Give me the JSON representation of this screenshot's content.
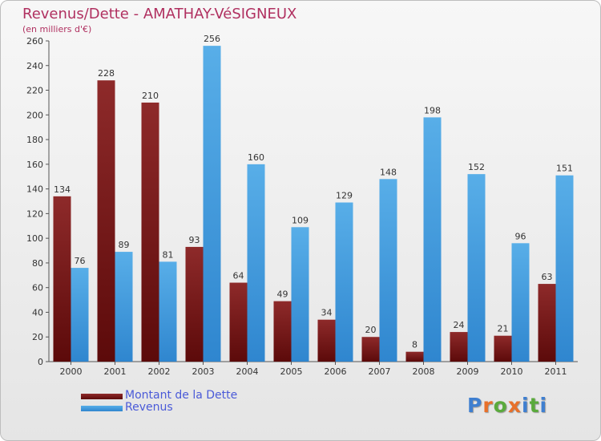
{
  "header": {
    "title": "Revenus/Dette - AMATHAY-VéSIGNEUX",
    "subtitle": "(en milliers d'€)"
  },
  "legend": {
    "items": [
      {
        "label": "Montant de la Dette",
        "color": "#7a1a1a"
      },
      {
        "label": "Revenus",
        "color": "#3d95dd"
      }
    ]
  },
  "logo": {
    "text": "Proxiti",
    "letter_colors": [
      "#3f7fd0",
      "#e8702a",
      "#5aaa3c",
      "#e8702a",
      "#3f7fd0",
      "#5aaa3c",
      "#3f7fd0"
    ]
  },
  "colors": {
    "debt": "#7a1a1a",
    "revenue": "#3d95dd",
    "title": "#b03060"
  },
  "chart_data": {
    "type": "bar",
    "title": "Revenus/Dette - AMATHAY-VéSIGNEUX",
    "subtitle": "(en milliers d'€)",
    "xlabel": "",
    "ylabel": "",
    "ylim": [
      0,
      260
    ],
    "yticks": [
      0,
      20,
      40,
      60,
      80,
      100,
      120,
      140,
      160,
      180,
      200,
      220,
      240,
      260
    ],
    "grid": false,
    "legend_position": "bottom-left",
    "categories": [
      "2000",
      "2001",
      "2002",
      "2003",
      "2004",
      "2005",
      "2006",
      "2007",
      "2008",
      "2009",
      "2010",
      "2011"
    ],
    "series": [
      {
        "name": "Montant de la Dette",
        "values": [
          134,
          228,
          210,
          93,
          64,
          49,
          34,
          20,
          8,
          24,
          21,
          63
        ]
      },
      {
        "name": "Revenus",
        "values": [
          76,
          89,
          81,
          256,
          160,
          109,
          129,
          148,
          198,
          152,
          96,
          151
        ]
      }
    ]
  }
}
